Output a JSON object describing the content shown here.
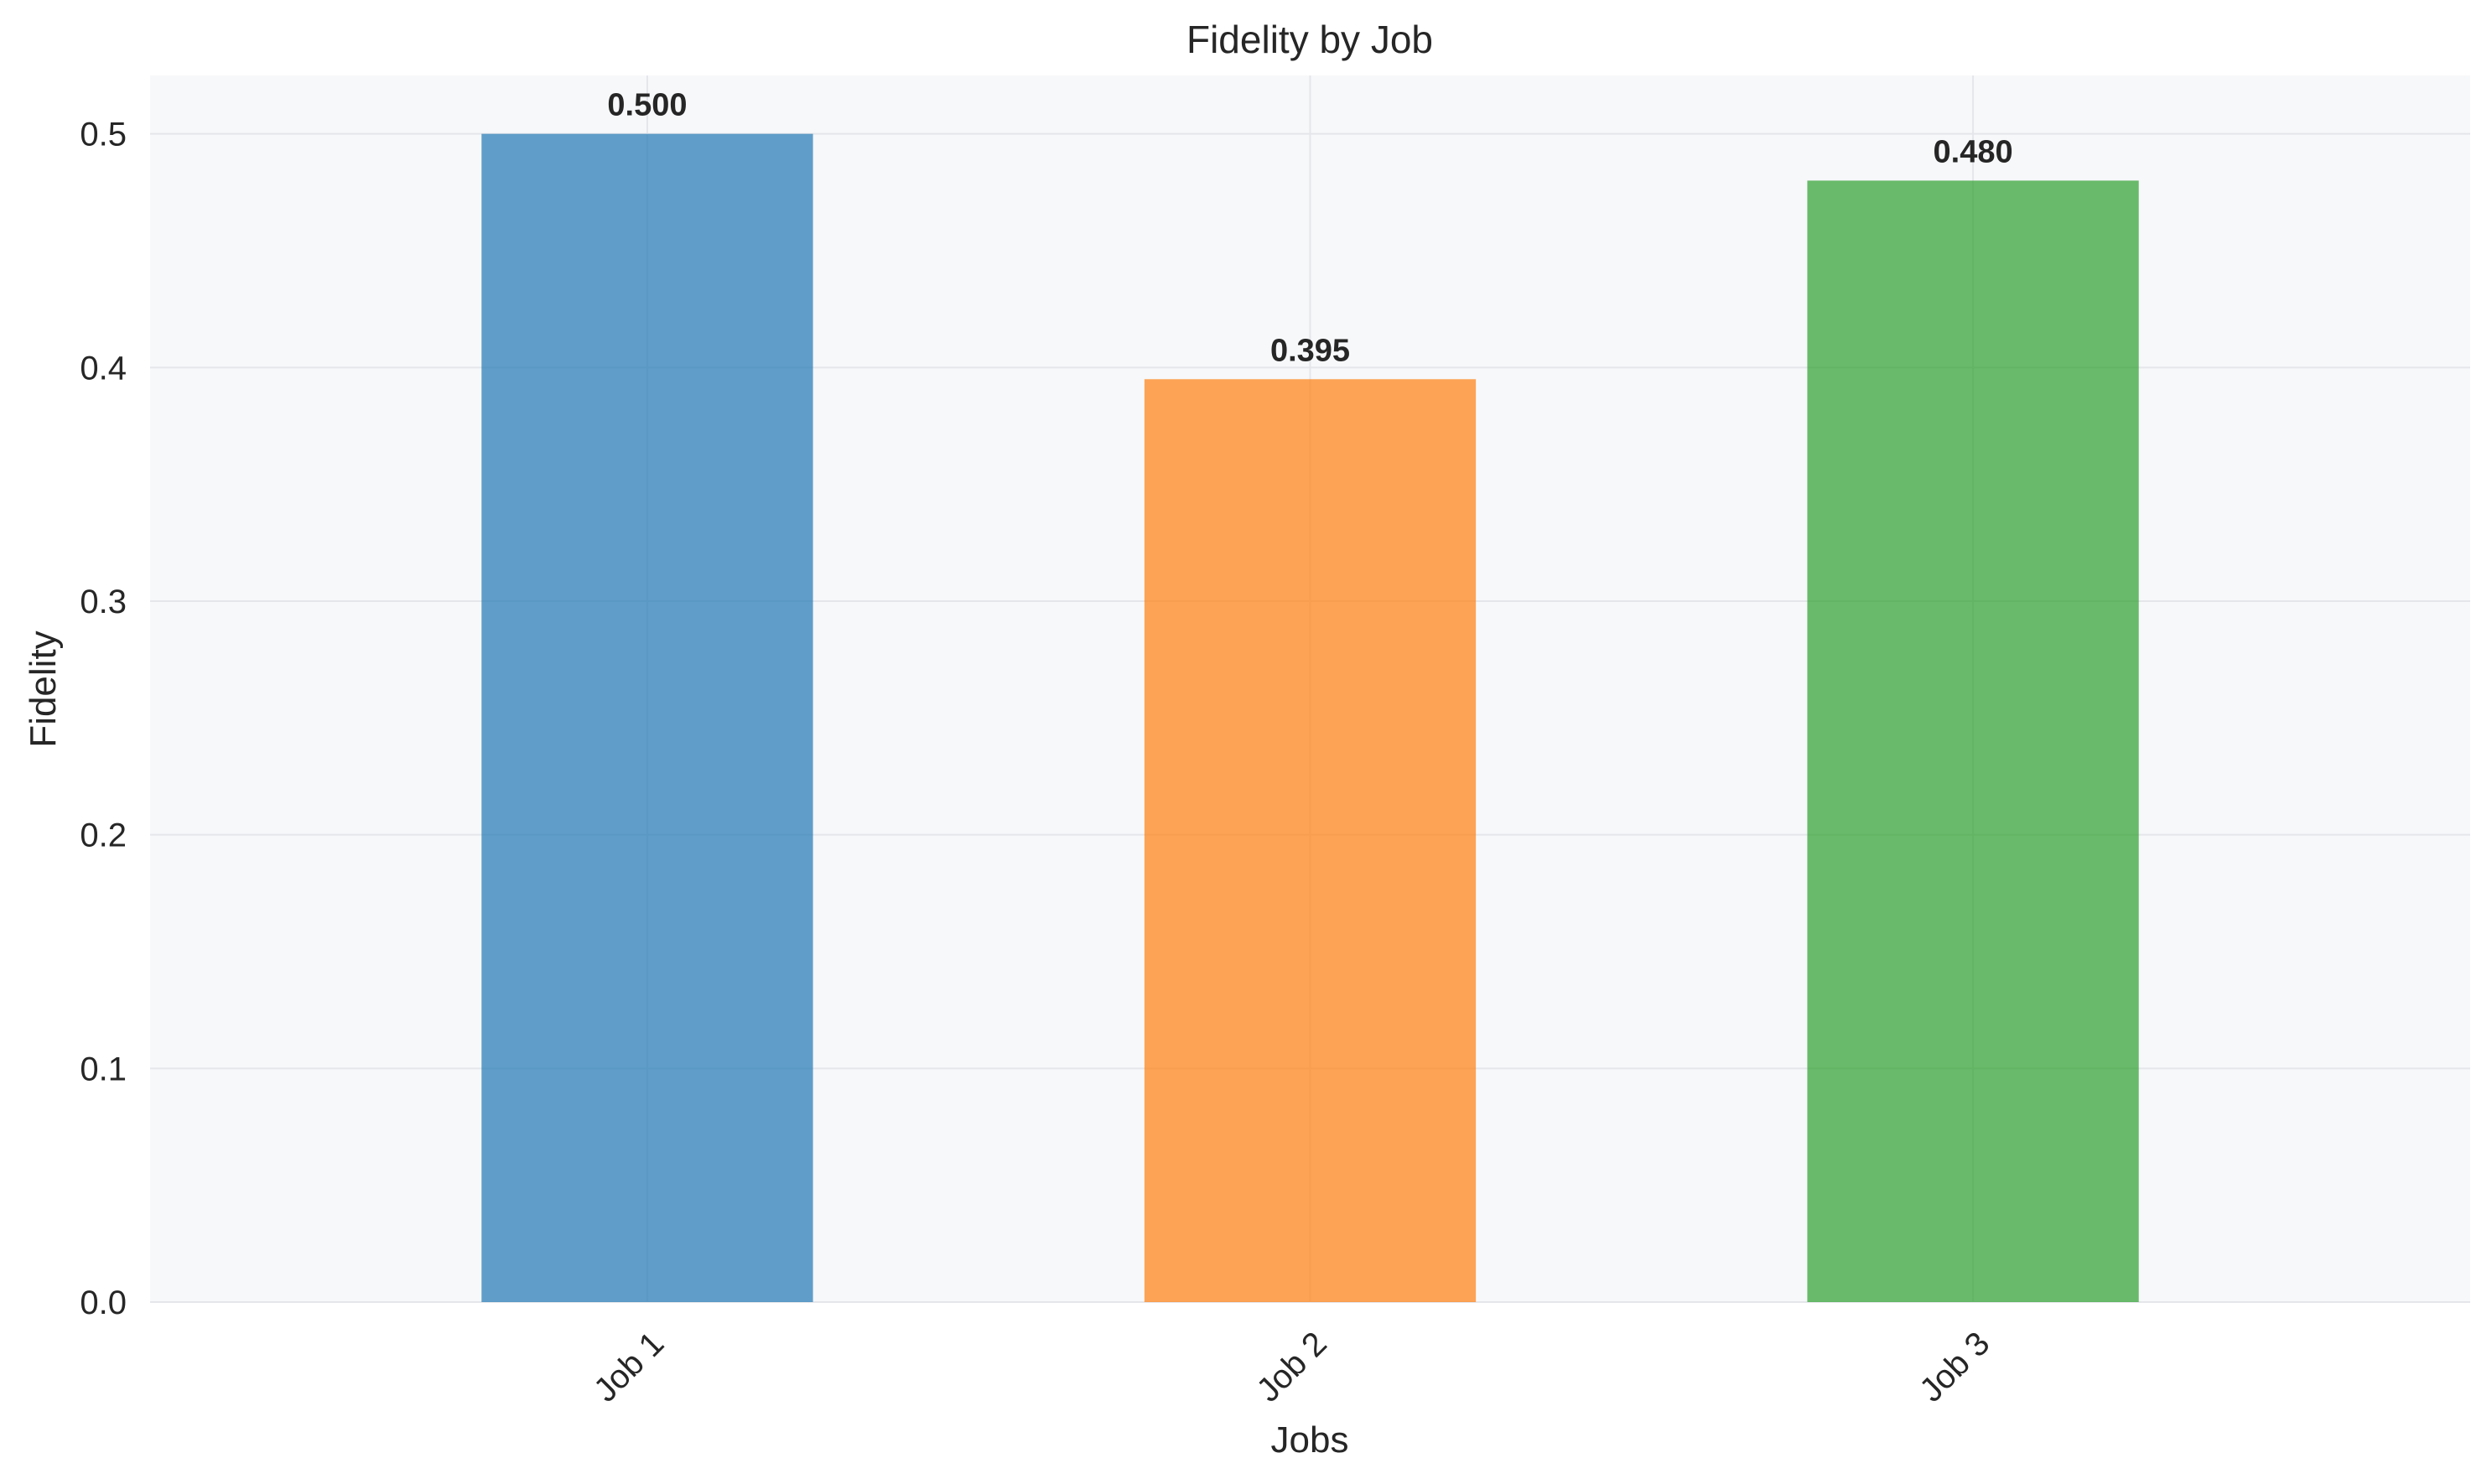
{
  "chart_data": {
    "type": "bar",
    "title": "Fidelity by Job",
    "xlabel": "Jobs",
    "ylabel": "Fidelity",
    "categories": [
      "Job 1",
      "Job 2",
      "Job 3"
    ],
    "values": [
      0.5,
      0.395,
      0.48
    ],
    "value_labels": [
      "0.500",
      "0.395",
      "0.480"
    ],
    "colors": [
      "#1f77b4",
      "#ff7f0e",
      "#2ca02c"
    ],
    "bar_opacity": 0.7,
    "ylim": [
      0,
      0.525
    ],
    "yticks": [
      0.0,
      0.1,
      0.2,
      0.3,
      0.4,
      0.5
    ],
    "ytick_labels": [
      "0.0",
      "0.1",
      "0.2",
      "0.3",
      "0.4",
      "0.5"
    ],
    "grid": true,
    "legend": "none",
    "plot_background": "#f7f8fa"
  }
}
